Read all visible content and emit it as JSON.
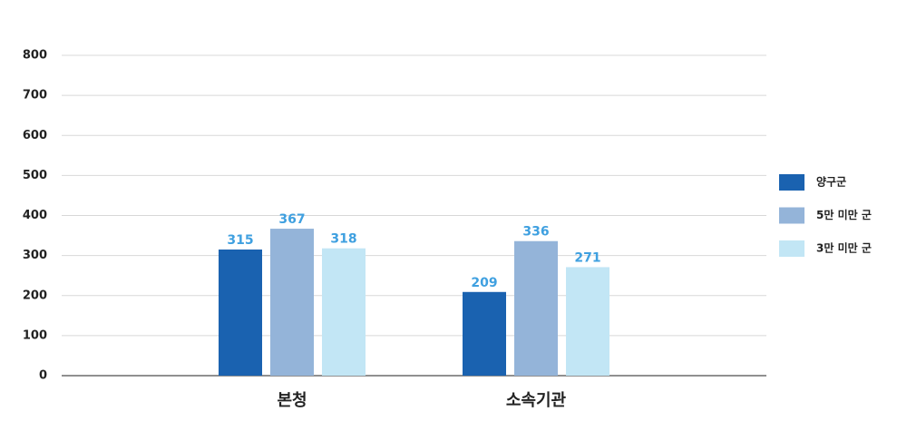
{
  "chart_data": {
    "type": "bar",
    "categories": [
      "본청",
      "소속기관"
    ],
    "series": [
      {
        "name": "양구군",
        "color": "#1a62b0",
        "values": [
          315,
          209
        ]
      },
      {
        "name": "5만 미만 군",
        "color": "#94b4d9",
        "values": [
          367,
          336
        ]
      },
      {
        "name": "3만 미만 군",
        "color": "#c2e6f5",
        "values": [
          318,
          271
        ]
      }
    ],
    "ylim": [
      0,
      800
    ],
    "yticks": [
      0,
      100,
      200,
      300,
      400,
      500,
      600,
      700,
      800
    ],
    "grid": true,
    "legend": "right"
  }
}
